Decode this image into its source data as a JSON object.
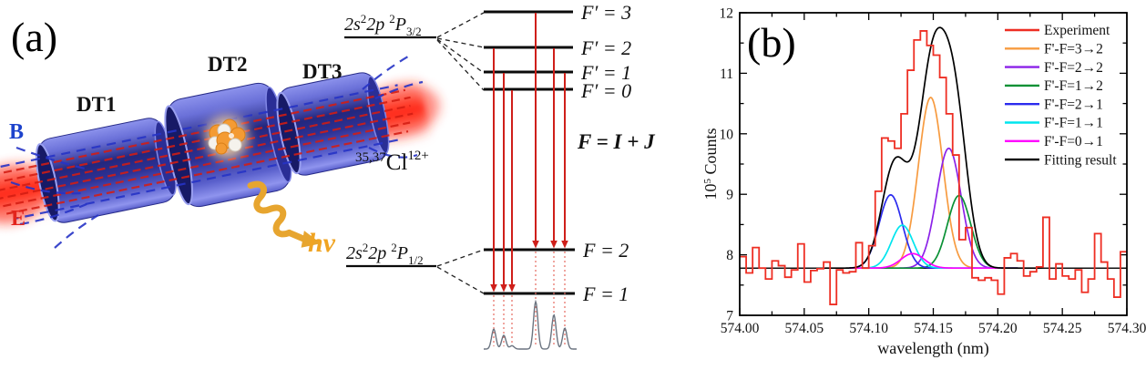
{
  "panel_a": {
    "label": "(a)",
    "field_label_b": "B",
    "field_label_e": "E",
    "drift_tube_labels": [
      "DT1",
      "DT2",
      "DT3"
    ],
    "photon_label": "hν",
    "ion_label": {
      "mass_numbers": "35,37",
      "element": "Cl",
      "charge": "12+"
    },
    "upper_term": {
      "t1": "2s",
      "sup1": "2",
      "t2": "2p",
      "sup2": "2",
      "t3": "P",
      "sub": "3/2"
    },
    "lower_term": {
      "t1": "2s",
      "sup1": "2",
      "t2": "2p",
      "sup2": "2",
      "t3": "P",
      "sub": "1/2"
    },
    "upper_levels": [
      "F′ = 3",
      "F′ = 2",
      "F′ = 1",
      "F′ = 0"
    ],
    "lower_levels": [
      "F = 2",
      "F = 1"
    ],
    "coupling_equation": "F = I + J",
    "transitions": [
      {
        "upper": "F′=2",
        "lower": "F=1",
        "relative_intensity": 0.42
      },
      {
        "upper": "F′=1",
        "lower": "F=1",
        "relative_intensity": 0.29
      },
      {
        "upper": "F′=0",
        "lower": "F=1",
        "relative_intensity": 0.07
      },
      {
        "upper": "F′=3",
        "lower": "F=2",
        "relative_intensity": 1.0
      },
      {
        "upper": "F′=2",
        "lower": "F=2",
        "relative_intensity": 0.72
      },
      {
        "upper": "F′=1",
        "lower": "F=2",
        "relative_intensity": 0.44
      }
    ]
  },
  "panel_b": {
    "label": "(b)"
  },
  "chart_data": {
    "type": "line",
    "title": "",
    "xlabel": "wavelength (nm)",
    "ylabel_parts": {
      "base": "10",
      "sup": "5",
      "rest": " Counts"
    },
    "xlim": [
      574.0,
      574.3
    ],
    "ylim": [
      7,
      12
    ],
    "x_major_ticks": [
      "574.00",
      "574.05",
      "574.10",
      "574.15",
      "574.20",
      "574.25",
      "574.30"
    ],
    "y_major_ticks": [
      "7",
      "8",
      "9",
      "10",
      "11",
      "12"
    ],
    "grid": false,
    "legend_position": "top-right",
    "baseline_1e5": 7.78,
    "experiment": {
      "label": "Experiment",
      "color": "#ee2e23",
      "x_start": 574.0,
      "bin_width": 0.005,
      "counts_1e5": [
        7.97,
        7.7,
        8.12,
        7.78,
        7.6,
        7.9,
        7.82,
        7.63,
        7.75,
        8.18,
        7.55,
        7.74,
        7.77,
        7.88,
        7.18,
        7.75,
        7.7,
        7.72,
        8.2,
        7.78,
        8.15,
        9.05,
        9.93,
        9.88,
        9.76,
        10.33,
        11.05,
        11.55,
        11.7,
        11.46,
        11.3,
        10.93,
        10.33,
        9.65,
        8.25,
        8.45,
        7.62,
        7.58,
        7.62,
        7.58,
        7.35,
        7.95,
        8.02,
        7.9,
        7.65,
        7.72,
        7.8,
        8.62,
        7.6,
        7.85,
        7.65,
        7.6,
        7.75,
        7.38,
        7.6,
        8.35,
        7.88,
        7.6,
        7.3,
        8.05
      ]
    },
    "components": [
      {
        "label": "F'-F=3→2",
        "color": "#f79b40",
        "center": 574.148,
        "amplitude": 2.82,
        "sigma": 0.0095
      },
      {
        "label": "F'-F=2→2",
        "color": "#8b22e8",
        "center": 574.162,
        "amplitude": 1.98,
        "sigma": 0.0095
      },
      {
        "label": "F'-F=1→2",
        "color": "#0a9135",
        "center": 574.17,
        "amplitude": 1.2,
        "sigma": 0.009
      },
      {
        "label": "F'-F=2→1",
        "color": "#2b2bee",
        "center": 574.117,
        "amplitude": 1.21,
        "sigma": 0.009
      },
      {
        "label": "F'-F=1→1",
        "color": "#00e5ee",
        "center": 574.126,
        "amplitude": 0.71,
        "sigma": 0.0085
      },
      {
        "label": "F'-F=0→1",
        "color": "#ff00ff",
        "center": 574.134,
        "amplitude": 0.24,
        "sigma": 0.009
      }
    ],
    "fit": {
      "label": "Fitting result",
      "color": "#000000"
    }
  }
}
